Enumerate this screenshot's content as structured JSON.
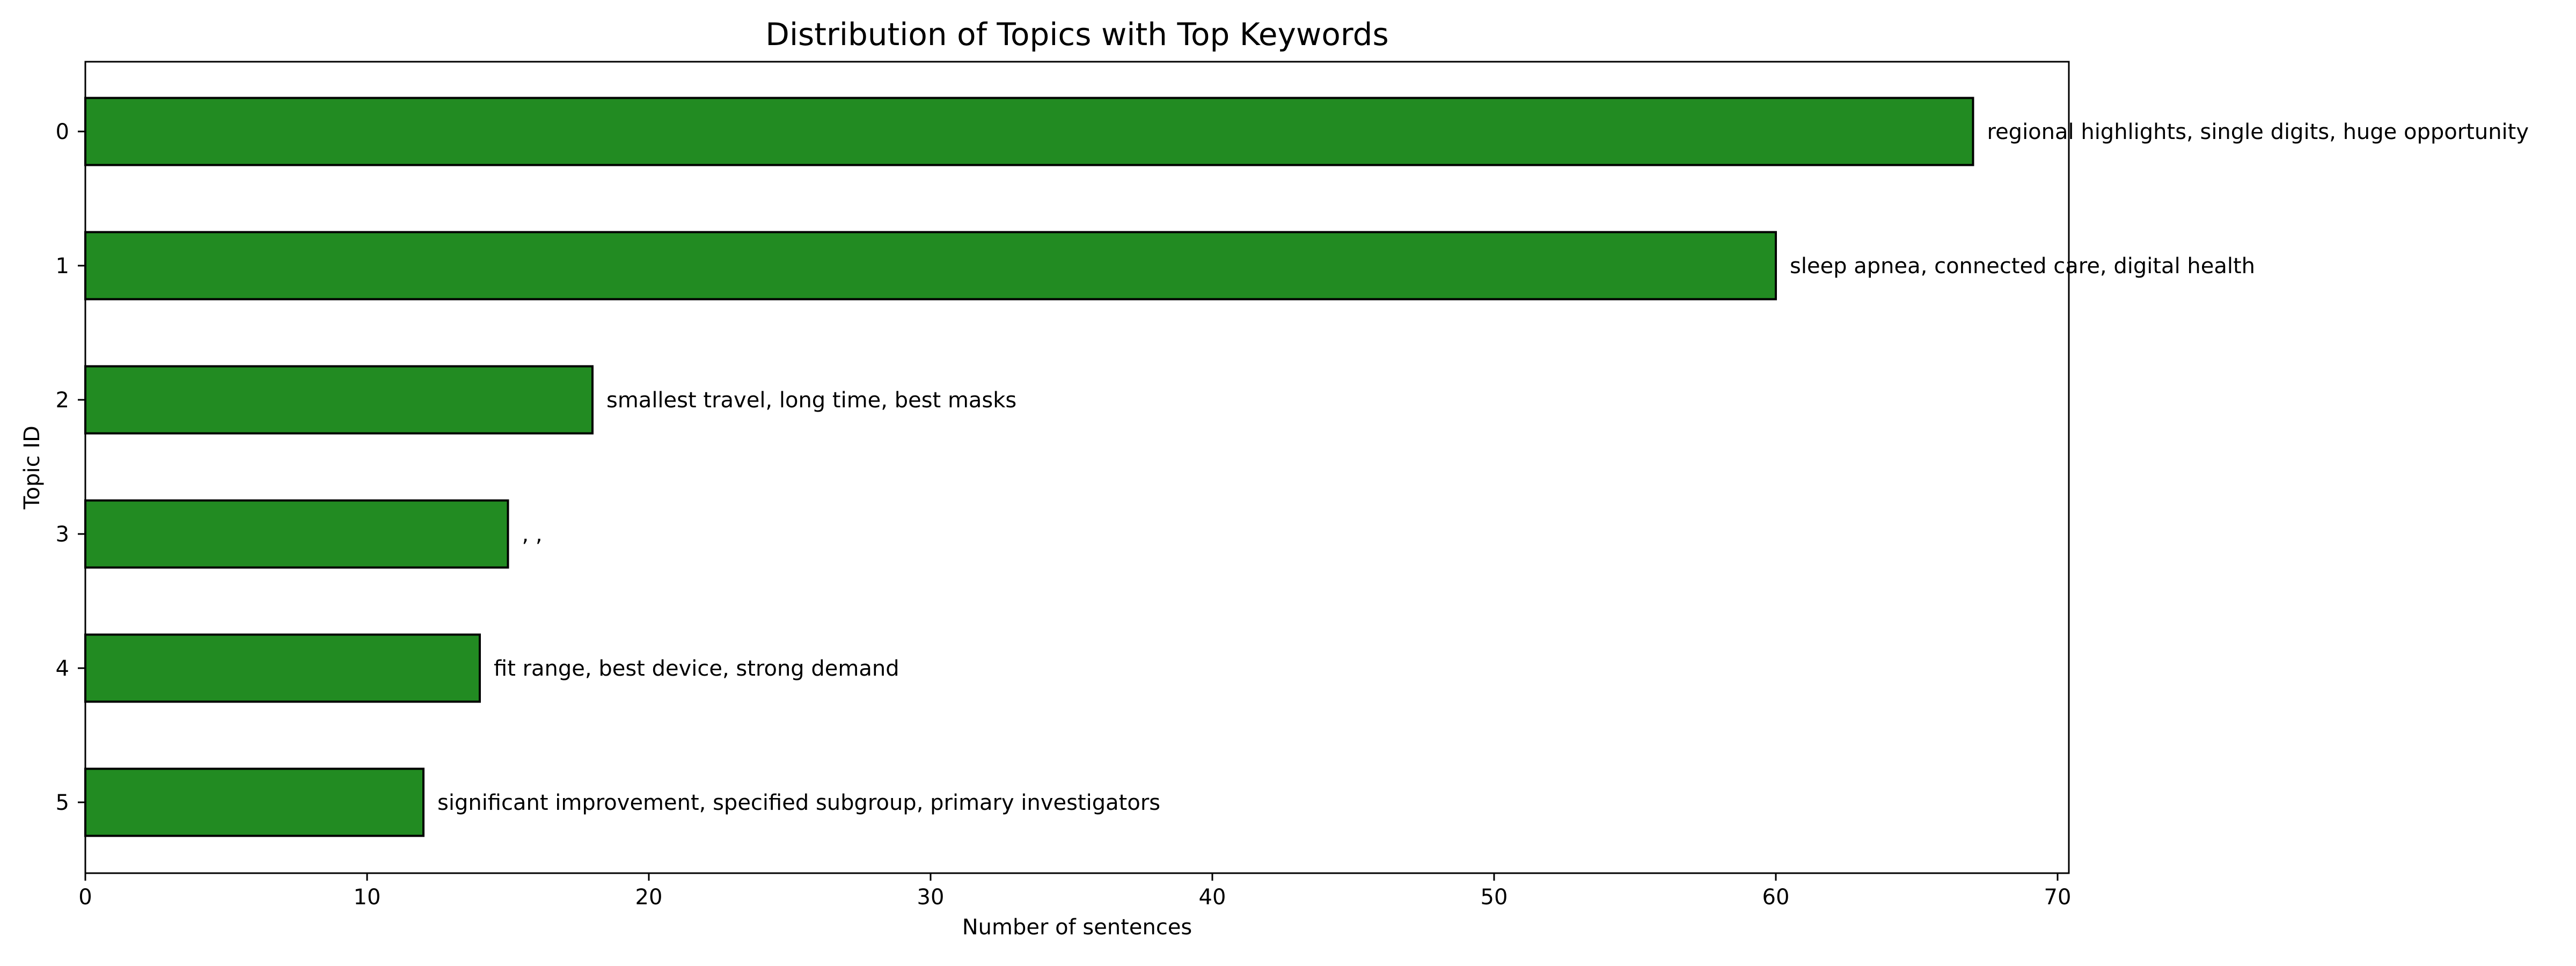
{
  "chart_data": {
    "type": "bar",
    "orientation": "horizontal",
    "title": "Distribution of Topics with Top Keywords",
    "xlabel": "Number of sentences",
    "ylabel": "Topic ID",
    "xlim": [
      0,
      70.4
    ],
    "x_ticks": [
      0,
      10,
      20,
      30,
      40,
      50,
      60,
      70
    ],
    "categories": [
      "0",
      "1",
      "2",
      "3",
      "4",
      "5"
    ],
    "values": [
      67,
      60,
      18,
      15,
      14,
      12
    ],
    "labels": [
      "regional highlights, single digits, huge opportunity",
      "sleep apnea, connected care, digital health",
      "smallest travel, long time, best masks",
      ", ,",
      "fit range, best device, strong demand",
      "significant improvement, specified subgroup, primary investigators"
    ],
    "bar_color": "#228B22",
    "edge_color": "#000000",
    "grid": false,
    "legend": "none"
  }
}
